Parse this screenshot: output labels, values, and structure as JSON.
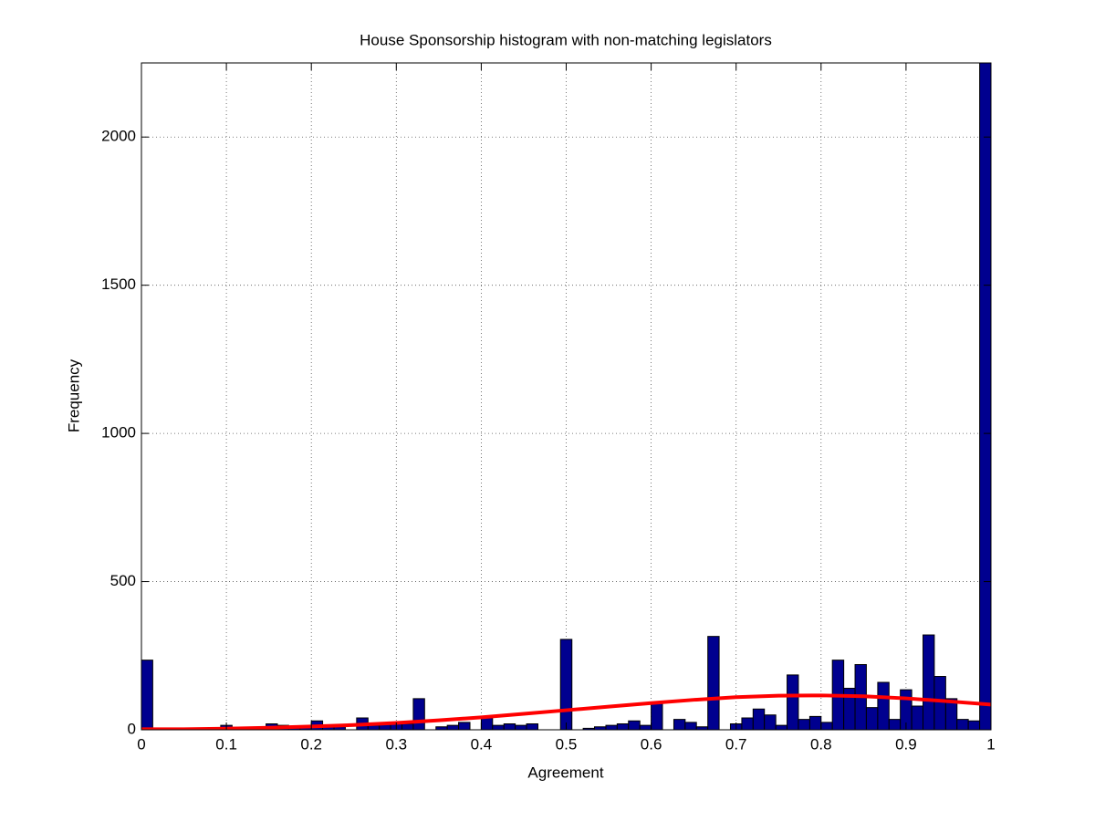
{
  "chart_data": {
    "type": "histogram",
    "title": "House Sponsorship histogram with non-matching legislators",
    "x_label": "Agreement",
    "y_label": "Frequency",
    "bins": [
      0,
      0.0133,
      0.0267,
      0.04,
      0.0533,
      0.0667,
      0.08,
      0.0933,
      0.1067,
      0.12,
      0.1333,
      0.1467,
      0.16,
      0.1733,
      0.1867,
      0.2,
      0.2133,
      0.2267,
      0.24,
      0.2533,
      0.2667,
      0.28,
      0.2933,
      0.3067,
      0.32,
      0.3333,
      0.3467,
      0.36,
      0.3733,
      0.3867,
      0.4,
      0.4133,
      0.4267,
      0.44,
      0.4533,
      0.4667,
      0.48,
      0.4933,
      0.5067,
      0.52,
      0.5333,
      0.5467,
      0.56,
      0.5733,
      0.5867,
      0.6,
      0.6133,
      0.6267,
      0.64,
      0.6533,
      0.6667,
      0.68,
      0.6933,
      0.7067,
      0.72,
      0.7333,
      0.7467,
      0.76,
      0.7733,
      0.7867,
      0.8,
      0.8133,
      0.8267,
      0.84,
      0.8533,
      0.8667,
      0.88,
      0.8933,
      0.9067,
      0.92,
      0.9333,
      0.9467,
      0.96,
      0.9733,
      0.9867,
      1
    ],
    "counts": [
      235,
      0,
      0,
      0,
      0,
      3,
      5,
      15,
      8,
      8,
      8,
      20,
      15,
      10,
      10,
      30,
      15,
      10,
      0,
      40,
      15,
      20,
      20,
      20,
      105,
      0,
      10,
      15,
      25,
      0,
      40,
      15,
      20,
      15,
      20,
      0,
      0,
      305,
      0,
      5,
      10,
      15,
      20,
      30,
      15,
      90,
      0,
      35,
      25,
      10,
      315,
      0,
      20,
      40,
      70,
      50,
      15,
      185,
      35,
      45,
      25,
      235,
      140,
      220,
      75,
      160,
      35,
      135,
      80,
      320,
      180,
      105,
      35,
      30,
      2260
    ],
    "color": "#00008f",
    "fit": {
      "color": "#ff0000",
      "x": [
        0,
        0.05,
        0.1,
        0.15,
        0.2,
        0.25,
        0.3,
        0.35,
        0.4,
        0.45,
        0.5,
        0.55,
        0.6,
        0.65,
        0.7,
        0.75,
        0.8,
        0.85,
        0.9,
        0.95,
        1
      ],
      "values": [
        2,
        2,
        4,
        7,
        11,
        16,
        23,
        32,
        42,
        54,
        66,
        78,
        90,
        101,
        110,
        115,
        116,
        113,
        106,
        96,
        85
      ]
    },
    "xlim": [
      0,
      1
    ],
    "xticks": [
      0,
      0.1,
      0.2,
      0.3,
      0.4,
      0.5,
      0.6,
      0.7,
      0.8,
      0.9,
      1
    ],
    "ylim": [
      0,
      2250
    ],
    "yticks": [
      0,
      500,
      1000,
      1500,
      2000
    ],
    "grid": true
  }
}
